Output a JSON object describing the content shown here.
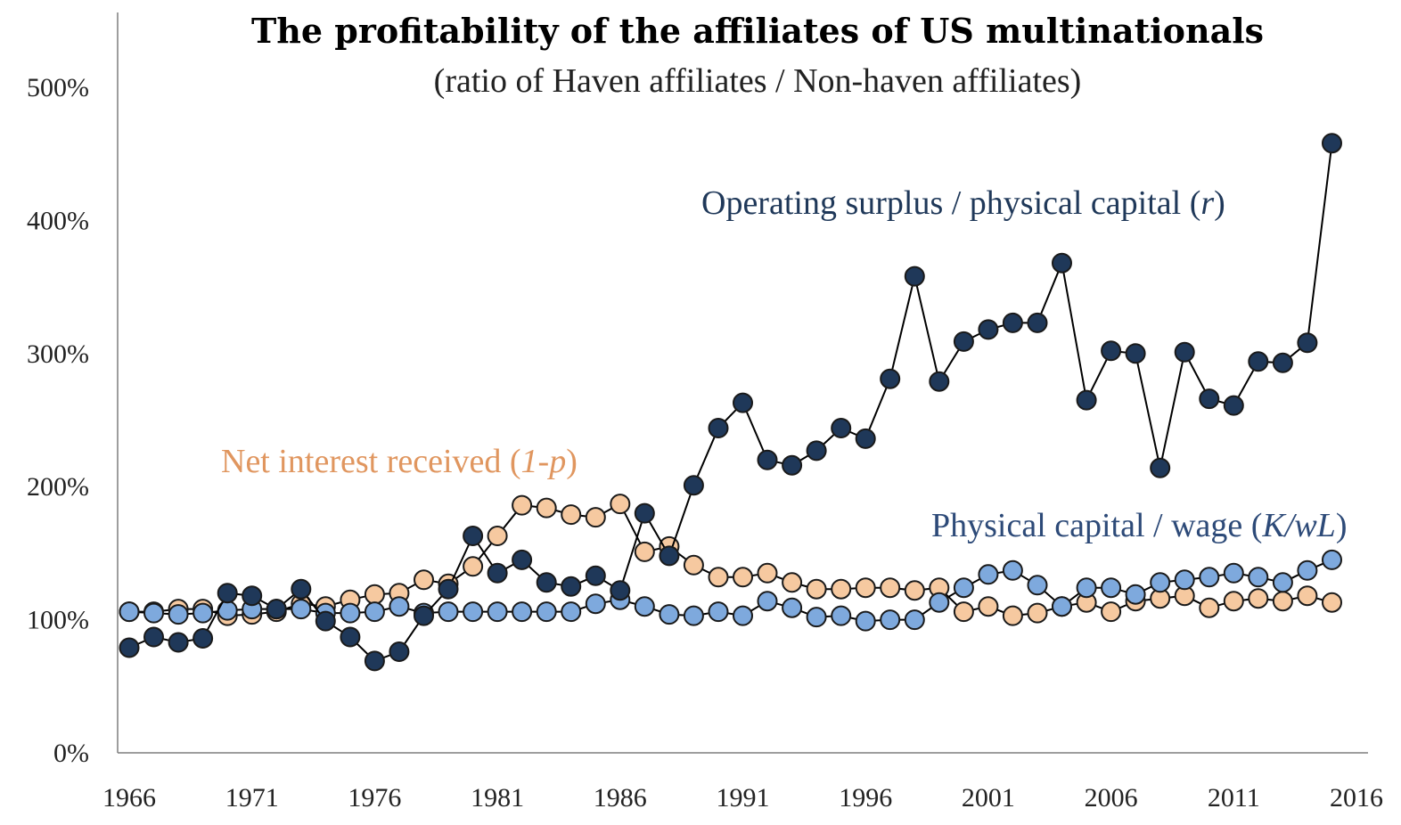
{
  "chart_data": {
    "type": "line",
    "title": "The profitability of the affiliates of US multinationals",
    "subtitle": "(ratio of Haven affiliates / Non-haven affiliates)",
    "xlabel": "",
    "ylabel": "",
    "xlim": [
      1966,
      2016
    ],
    "ylim": [
      0,
      500
    ],
    "x_ticks": [
      "1966",
      "1971",
      "1976",
      "1981",
      "1986",
      "1991",
      "1996",
      "2001",
      "2006",
      "2011",
      "2016"
    ],
    "y_ticks": [
      "0%",
      "100%",
      "200%",
      "300%",
      "400%",
      "500%"
    ],
    "grid": false,
    "x": [
      1966,
      1967,
      1968,
      1969,
      1970,
      1971,
      1972,
      1973,
      1974,
      1975,
      1976,
      1977,
      1978,
      1979,
      1980,
      1981,
      1982,
      1983,
      1984,
      1985,
      1986,
      1987,
      1988,
      1989,
      1990,
      1991,
      1992,
      1993,
      1994,
      1995,
      1996,
      1997,
      1998,
      1999,
      2000,
      2001,
      2002,
      2003,
      2004,
      2005,
      2006,
      2007,
      2008,
      2009,
      2010,
      2011,
      2012,
      2013,
      2014,
      2015
    ],
    "series": [
      {
        "id": "net_interest",
        "color": "#f6c9a0",
        "values": [
          106,
          106,
          108,
          108,
          103,
          104,
          106,
          112,
          110,
          115,
          119,
          120,
          130,
          127,
          140,
          163,
          186,
          184,
          179,
          177,
          187,
          151,
          155,
          141,
          132,
          132,
          135,
          128,
          123,
          123,
          124,
          124,
          122,
          124,
          106,
          110,
          103,
          105,
          110,
          113,
          106,
          114,
          116,
          118,
          109,
          114,
          116,
          114,
          118,
          113
        ]
      },
      {
        "id": "physical_capital_wage",
        "color": "#7ea9dd",
        "values": [
          106,
          105,
          104,
          105,
          107,
          108,
          108,
          108,
          105,
          105,
          106,
          110,
          105,
          106,
          106,
          106,
          106,
          106,
          106,
          112,
          115,
          110,
          104,
          103,
          106,
          103,
          114,
          109,
          102,
          103,
          99,
          100,
          100,
          113,
          124,
          134,
          137,
          126,
          110,
          124,
          124,
          119,
          128,
          130,
          132,
          135,
          132,
          128,
          137,
          145
        ]
      },
      {
        "id": "operating_surplus",
        "color": "#1f3859",
        "values": [
          79,
          87,
          83,
          86,
          120,
          118,
          108,
          123,
          99,
          87,
          69,
          76,
          103,
          123,
          163,
          135,
          145,
          128,
          125,
          133,
          122,
          180,
          148,
          201,
          244,
          263,
          220,
          216,
          227,
          244,
          236,
          281,
          358,
          279,
          309,
          318,
          323,
          323,
          368,
          265,
          302,
          300,
          214,
          301,
          266,
          261,
          294,
          293,
          308,
          458
        ]
      }
    ],
    "annotations": {
      "operating": {
        "text": "Operating surplus / physical capital (",
        "italic": "r",
        "close": ")",
        "color": "#1f3859"
      },
      "net": {
        "text": "Net interest received (",
        "italic": "1-p",
        "close": ")",
        "color": "#e0965f"
      },
      "capital": {
        "text": "Physical capital / wage (",
        "italic": "K/wL",
        "close": ")",
        "color": "#2d4a78"
      }
    }
  }
}
